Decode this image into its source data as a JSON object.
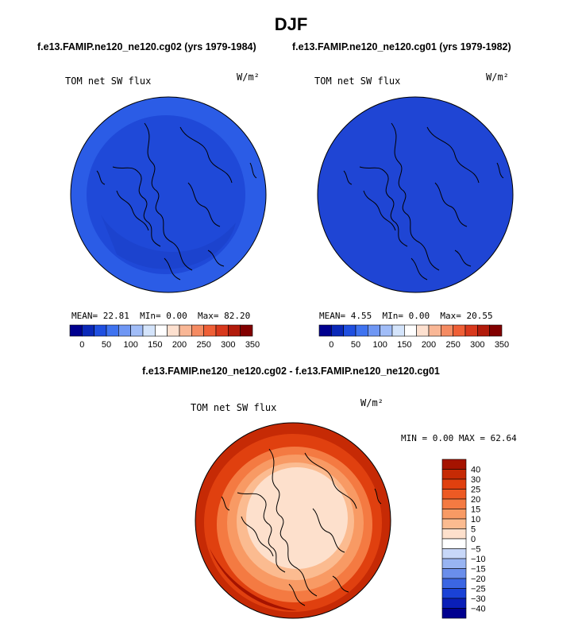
{
  "title": "DJF",
  "panels": [
    {
      "case_label": "f.e13.FAMIP.ne120_ne120.cg02 (yrs 1979-1984)",
      "variable": "TOM net SW flux",
      "units": "W/m²",
      "stats": {
        "mean_label": "MEAN=",
        "mean": "22.81",
        "min_label": "MIn=",
        "min": "0.00",
        "max_label": "Max=",
        "max": "82.20"
      }
    },
    {
      "case_label": "f.e13.FAMIP.ne120_ne120.cg01 (yrs 1979-1982)",
      "variable": "TOM net SW flux",
      "units": "W/m²",
      "stats": {
        "mean_label": "MEAN=",
        "mean": "4.55",
        "min_label": "MIn=",
        "min": "0.00",
        "max_label": "Max=",
        "max": "20.55"
      }
    }
  ],
  "top_colorbar": {
    "ticks": [
      "0",
      "50",
      "100",
      "150",
      "200",
      "250",
      "300",
      "350"
    ],
    "colors": [
      "#00008f",
      "#0a28b8",
      "#1f4fe0",
      "#3f73f0",
      "#6f97f4",
      "#a1bdf8",
      "#d4e4fb",
      "#ffffff",
      "#fde0cf",
      "#f9b796",
      "#f58b62",
      "#ef5f36",
      "#d8381c",
      "#b21b0b",
      "#820000"
    ]
  },
  "diff_panel": {
    "title": "f.e13.FAMIP.ne120_ne120.cg02 - f.e13.FAMIP.ne120_ne120.cg01",
    "variable": "TOM net SW flux",
    "units": "W/m²",
    "stats": {
      "min_label": "MIN =",
      "min": "0.00",
      "max_label": "MAX =",
      "max": "62.64"
    }
  },
  "diff_colorbar": {
    "ticks": [
      "40",
      "30",
      "25",
      "20",
      "15",
      "10",
      "5",
      "0",
      "−5",
      "−10",
      "−15",
      "−20",
      "−25",
      "−30",
      "−40"
    ],
    "colors": [
      "#a51300",
      "#c62a05",
      "#e0400f",
      "#ed5a24",
      "#f47a42",
      "#f89a64",
      "#fbbb90",
      "#fde0cc",
      "#ffffff",
      "#c7d7f8",
      "#98b4f2",
      "#6a8eeb",
      "#3b66e3",
      "#1a42d6",
      "#0a1fb8",
      "#00008f"
    ]
  }
}
